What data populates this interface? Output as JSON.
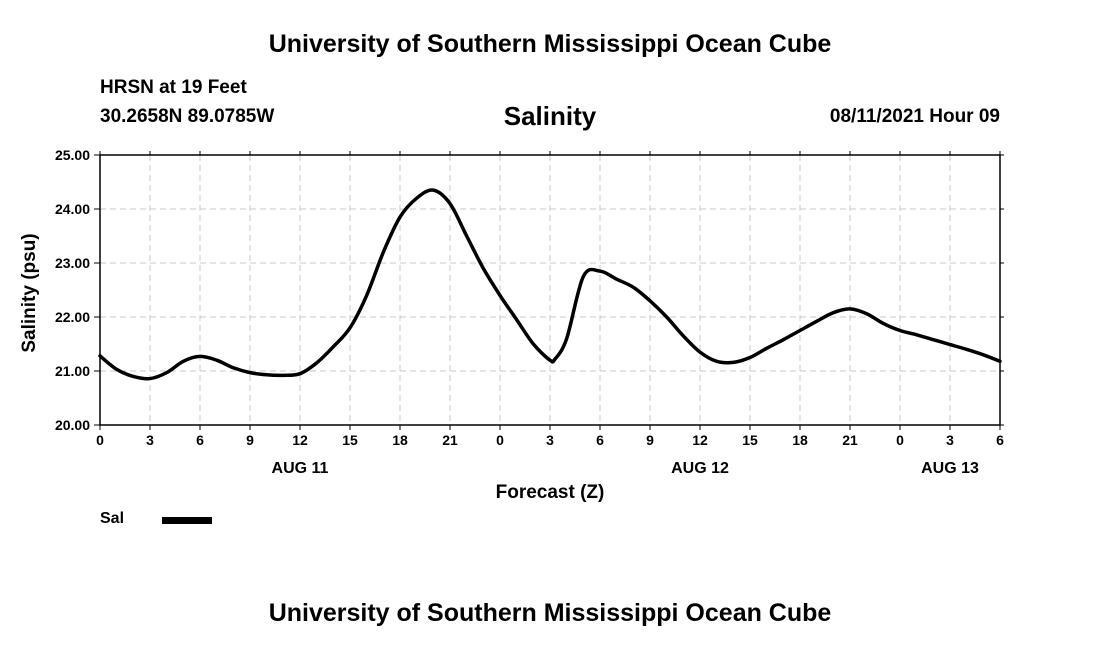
{
  "header": {
    "top_title": "University of Southern Mississippi Ocean Cube",
    "station": "HRSN at 19 Feet",
    "coords": "30.2658N  89.0785W",
    "run_time": "08/11/2021 Hour 09",
    "bottom_title": "University of Southern Mississippi Ocean Cube"
  },
  "legend": {
    "label": "Sal"
  },
  "chart_data": {
    "type": "line",
    "title": "Salinity",
    "xlabel": "Forecast (Z)",
    "ylabel": "Salinity (psu)",
    "ylim": [
      20.0,
      25.0
    ],
    "yticks": [
      "20.00",
      "21.00",
      "22.00",
      "23.00",
      "24.00",
      "25.00"
    ],
    "xlim": [
      0,
      54
    ],
    "x_unit": "forecast hours from 2021-08-11 00Z",
    "xtick_labels": [
      "0",
      "3",
      "6",
      "9",
      "12",
      "15",
      "18",
      "21",
      "0",
      "3",
      "6",
      "9",
      "12",
      "15",
      "18",
      "21",
      "0",
      "3",
      "6"
    ],
    "day_labels": [
      {
        "label": "AUG 11",
        "hour": 12
      },
      {
        "label": "AUG 12",
        "hour": 36
      },
      {
        "label": "AUG 13",
        "hour": 51
      }
    ],
    "grid": true,
    "series": [
      {
        "name": "Sal",
        "x": [
          0,
          1,
          2,
          3,
          4,
          5,
          6,
          7,
          8,
          9,
          10,
          11,
          12,
          13,
          14,
          15,
          16,
          17,
          18,
          19,
          20,
          21,
          22,
          23,
          24,
          25,
          26,
          27,
          27.3,
          28,
          29,
          30,
          31,
          32,
          33,
          34,
          35,
          36,
          37,
          38,
          39,
          40,
          41,
          42,
          43,
          44,
          45,
          46,
          47,
          48,
          49,
          50,
          51,
          52,
          53,
          54
        ],
        "values": [
          21.28,
          21.03,
          20.9,
          20.86,
          20.97,
          21.18,
          21.27,
          21.2,
          21.06,
          20.97,
          20.93,
          20.92,
          20.95,
          21.15,
          21.45,
          21.8,
          22.4,
          23.2,
          23.85,
          24.2,
          24.35,
          24.1,
          23.5,
          22.9,
          22.4,
          21.95,
          21.5,
          21.2,
          21.22,
          21.6,
          22.75,
          22.85,
          22.7,
          22.55,
          22.3,
          22.0,
          21.65,
          21.35,
          21.18,
          21.16,
          21.25,
          21.42,
          21.58,
          21.75,
          21.92,
          22.08,
          22.15,
          22.06,
          21.88,
          21.75,
          21.67,
          21.58,
          21.49,
          21.4,
          21.3,
          21.18
        ]
      }
    ]
  }
}
